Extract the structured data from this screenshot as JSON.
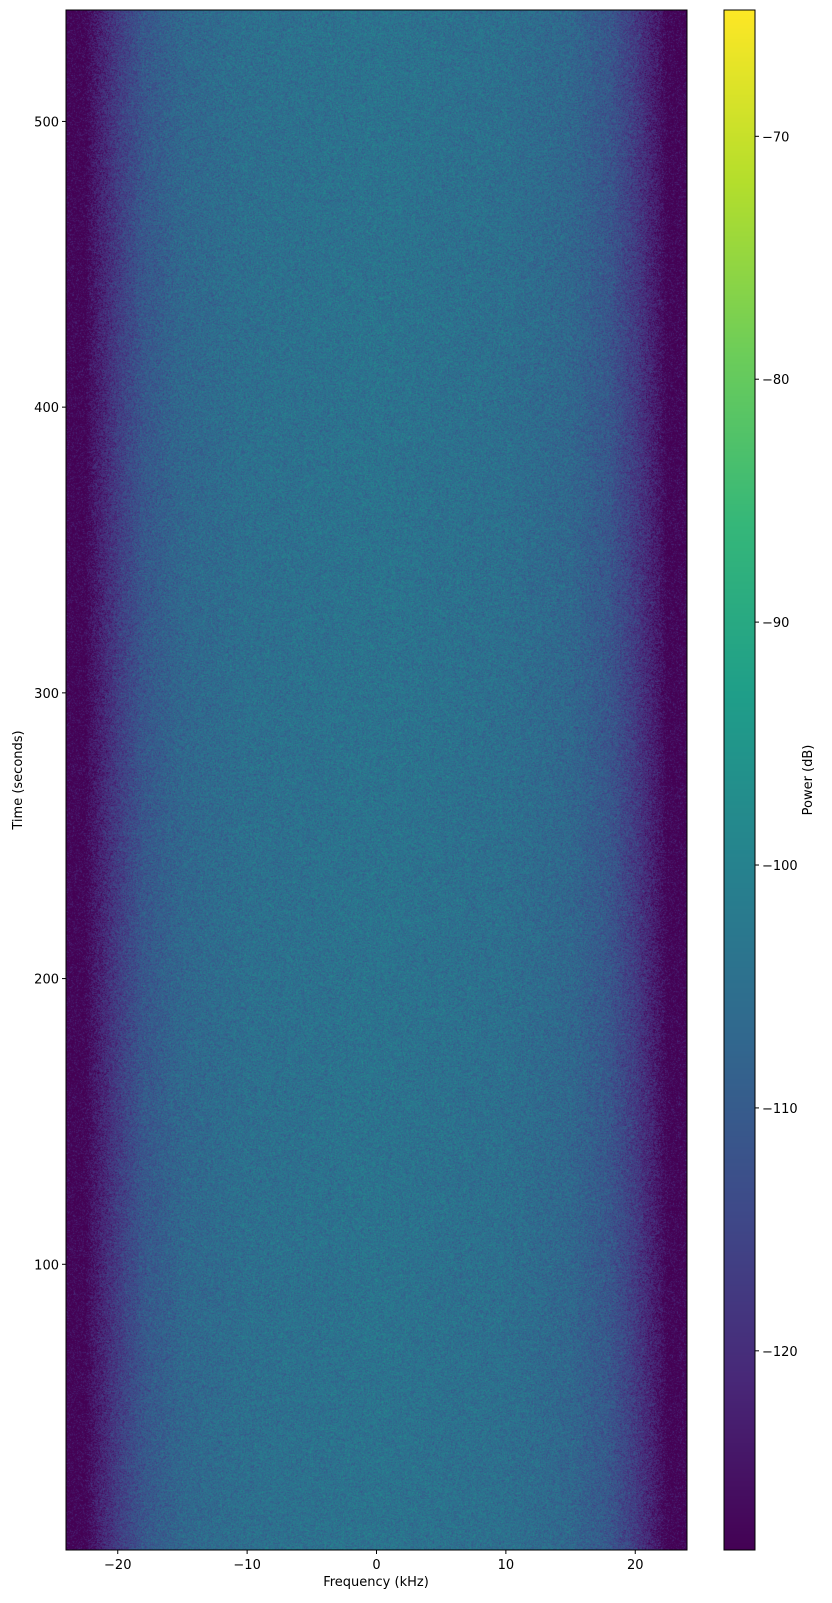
{
  "chart_data": {
    "type": "heatmap",
    "title": "",
    "xlabel": "Frequency (kHz)",
    "ylabel": "Time (seconds)",
    "xlim": [
      -24,
      24
    ],
    "ylim": [
      0,
      539
    ],
    "xticks": [
      -20,
      -10,
      0,
      10,
      20
    ],
    "yticks": [
      100,
      200,
      300,
      400,
      500
    ],
    "colormap": "viridis",
    "colorbar": {
      "label": "Power (dB)",
      "range": [
        -128.2,
        -64.8
      ],
      "ticks": [
        -70,
        -80,
        -90,
        -100,
        -110,
        -120
      ]
    },
    "power_profile": {
      "frequency_khz": [
        -24,
        -22.5,
        -22,
        -21,
        -20,
        -18,
        -15,
        -10,
        0,
        10,
        15,
        18,
        20,
        21,
        22,
        22.5,
        24
      ],
      "power_db": [
        -128,
        -128,
        -125,
        -121,
        -117,
        -111,
        -107,
        -105,
        -104,
        -105,
        -107,
        -111,
        -117,
        -121,
        -125,
        -128,
        -128
      ],
      "noise_std_db": 3
    },
    "grid": false
  }
}
